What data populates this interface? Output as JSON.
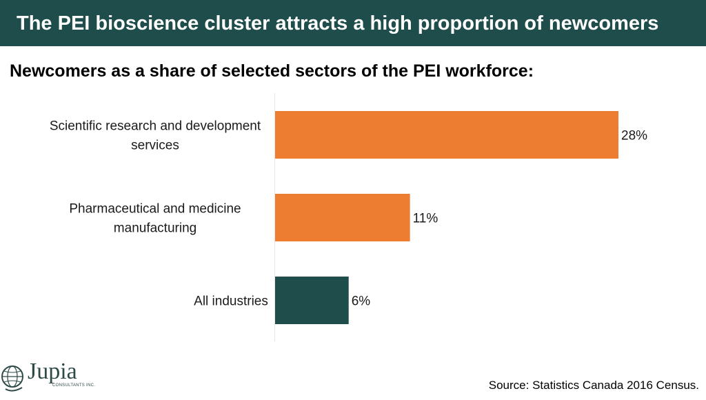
{
  "banner": {
    "title": "The PEI bioscience cluster attracts a high proportion of newcomers",
    "background": "#1f4d4b"
  },
  "subtitle": "Newcomers as a share of selected sectors of the PEI workforce:",
  "chart_data": {
    "type": "bar",
    "orientation": "horizontal",
    "categories": [
      [
        "Scientific research and development",
        "services"
      ],
      [
        "Pharmaceutical and medicine",
        "manufacturing"
      ],
      [
        "All industries"
      ]
    ],
    "values": [
      28,
      11,
      6
    ],
    "value_labels": [
      "28%",
      "11%",
      "6%"
    ],
    "bar_colors": [
      "#ed7d31",
      "#ed7d31",
      "#1f4d4b"
    ],
    "xlim": [
      0,
      30
    ],
    "title": "",
    "xlabel": "",
    "ylabel": "",
    "grid": false,
    "legend": "none"
  },
  "logo": {
    "name": "Jupia",
    "sub": "CONSULTANTS INC.",
    "icon": "globe-icon"
  },
  "source": "Source: Statistics Canada 2016 Census."
}
